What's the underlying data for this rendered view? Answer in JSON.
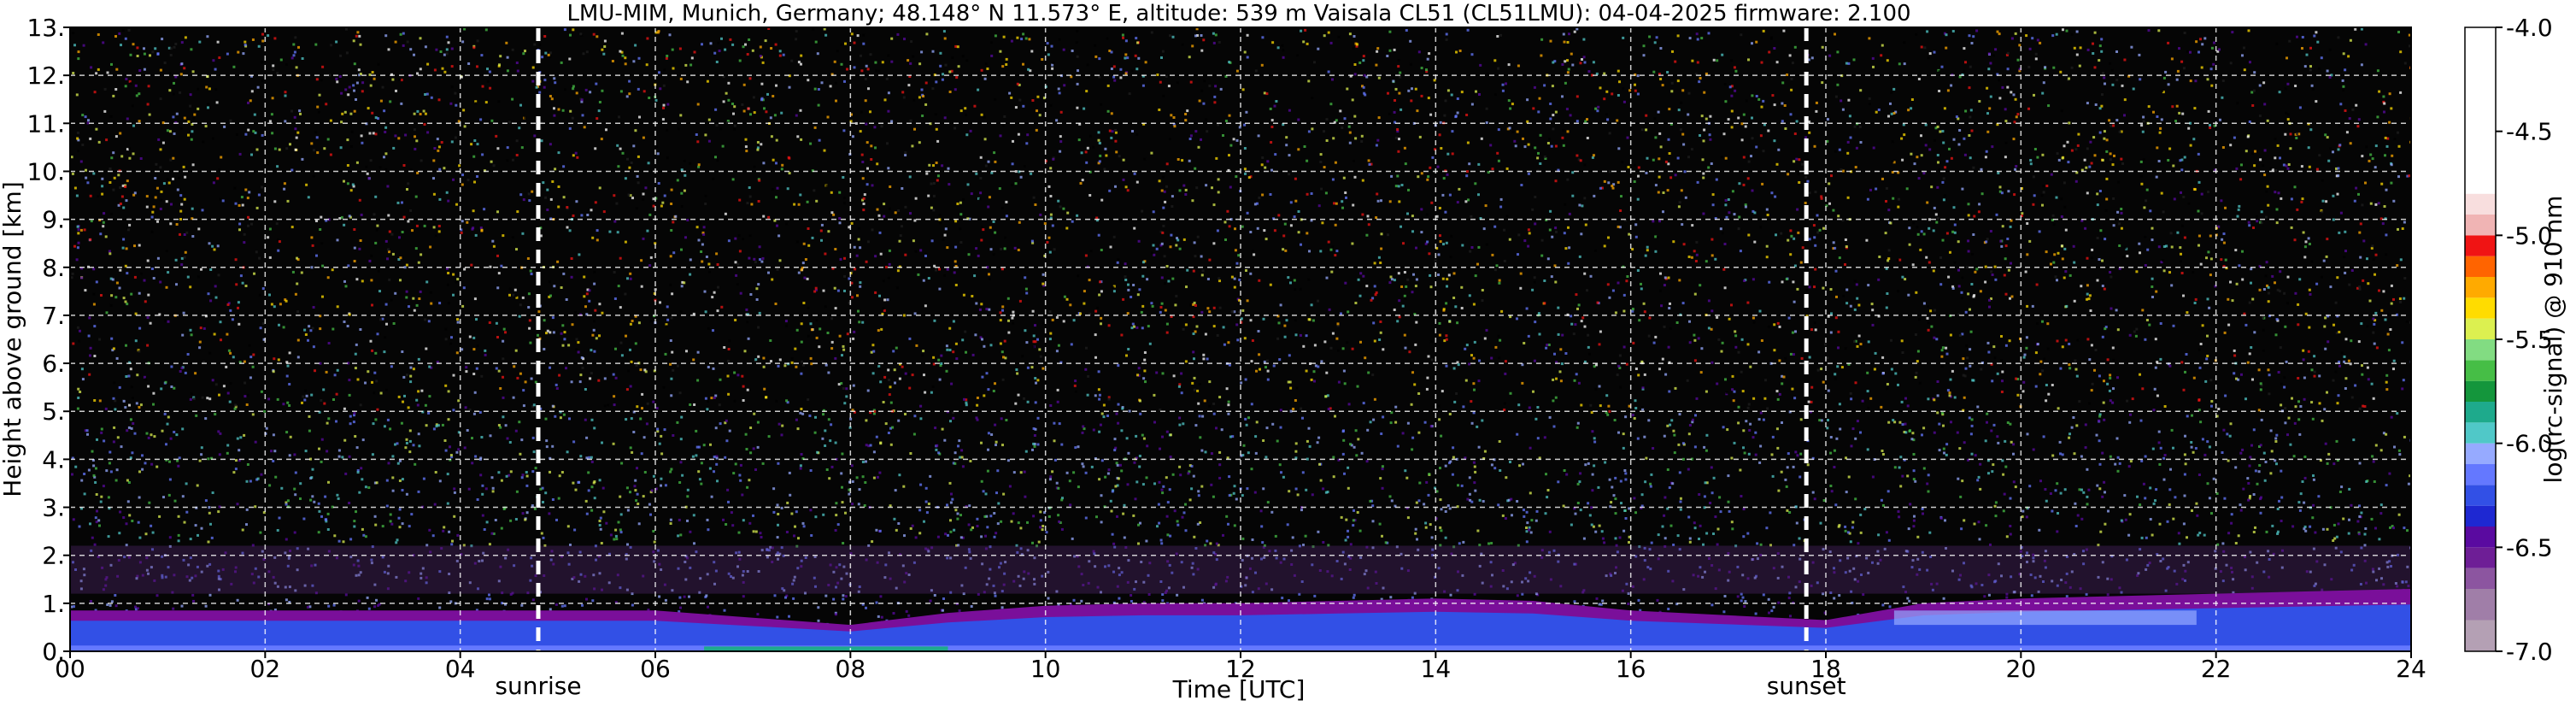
{
  "chart_data": {
    "type": "heatmap",
    "title": "LMU-MIM, Munich, Germany; 48.148° N 11.573° E, altitude: 539 m    Vaisala CL51 (CL51LMU): 04-04-2025    firmware: 2.100",
    "xlabel": "Time [UTC]",
    "ylabel": "Height above ground [km]",
    "xlim": [
      0,
      24
    ],
    "ylim": [
      0,
      13
    ],
    "x_ticks": [
      0,
      2,
      4,
      6,
      8,
      10,
      12,
      14,
      16,
      18,
      20,
      22,
      24
    ],
    "x_tick_labels": [
      "00",
      "02",
      "04",
      "06",
      "08",
      "10",
      "12",
      "14",
      "16",
      "18",
      "20",
      "22",
      "24"
    ],
    "y_ticks": [
      0,
      1,
      2,
      3,
      4,
      5,
      6,
      7,
      8,
      9,
      10,
      11,
      12,
      13
    ],
    "y_tick_labels": [
      "0.",
      "1.",
      "2.",
      "3.",
      "4.",
      "5.",
      "6.",
      "7.",
      "8.",
      "9.",
      "10.",
      "11.",
      "12.",
      "13."
    ],
    "grid": true,
    "events": [
      {
        "label": "sunrise",
        "time": 4.8
      },
      {
        "label": "sunset",
        "time": 17.8
      }
    ],
    "colorbar": {
      "label": "log(rc-signal) @ 910 nm",
      "range": [
        -7.0,
        -4.0
      ],
      "ticks": [
        -7.0,
        -6.5,
        -6.0,
        -5.5,
        -5.0,
        -4.5,
        -4.0
      ],
      "tick_labels": [
        "-7.0",
        "-6.5",
        "-6.0",
        "-5.5",
        "-5.0",
        "-4.5",
        "-4.0"
      ],
      "levels": [
        {
          "from": -7.0,
          "color": "#b4a0b4"
        },
        {
          "from": -6.85,
          "color": "#a07ea8"
        },
        {
          "from": -6.7,
          "color": "#8c55a0"
        },
        {
          "from": -6.6,
          "color": "#6e1e96"
        },
        {
          "from": -6.5,
          "color": "#5a0aa0"
        },
        {
          "from": -6.4,
          "color": "#1e28d2"
        },
        {
          "from": -6.3,
          "color": "#3250e6"
        },
        {
          "from": -6.2,
          "color": "#6478ff"
        },
        {
          "from": -6.1,
          "color": "#96aaff"
        },
        {
          "from": -6.0,
          "color": "#50c8c8"
        },
        {
          "from": -5.9,
          "color": "#1eaa8c"
        },
        {
          "from": -5.8,
          "color": "#14963c"
        },
        {
          "from": -5.7,
          "color": "#46be46"
        },
        {
          "from": -5.6,
          "color": "#82dc82"
        },
        {
          "from": -5.5,
          "color": "#dcf050"
        },
        {
          "from": -5.4,
          "color": "#ffdc00"
        },
        {
          "from": -5.3,
          "color": "#ffaa00"
        },
        {
          "from": -5.2,
          "color": "#ff6400"
        },
        {
          "from": -5.1,
          "color": "#f01414"
        },
        {
          "from": -5.0,
          "color": "#f0b4b4"
        },
        {
          "from": -4.9,
          "color": "#f8dede"
        },
        {
          "from": -4.8,
          "color": "#ffffff"
        }
      ]
    },
    "boundary_layer_top_km": [
      [
        0,
        0.85
      ],
      [
        2,
        0.85
      ],
      [
        4,
        0.85
      ],
      [
        6,
        0.85
      ],
      [
        7,
        0.7
      ],
      [
        8,
        0.55
      ],
      [
        9,
        0.8
      ],
      [
        10,
        0.95
      ],
      [
        11,
        1.0
      ],
      [
        12,
        1.0
      ],
      [
        13,
        1.05
      ],
      [
        14,
        1.1
      ],
      [
        15,
        1.05
      ],
      [
        16,
        0.85
      ],
      [
        17,
        0.75
      ],
      [
        18,
        0.65
      ],
      [
        19,
        1.0
      ],
      [
        20,
        1.1
      ],
      [
        22,
        1.2
      ],
      [
        24,
        1.3
      ]
    ],
    "background_noise_colors": [
      "#000000",
      "#1e1e1e",
      "#5a0aa0",
      "#6478ff",
      "#96aaff",
      "#50c8c8",
      "#46be46",
      "#dcf050",
      "#ffdc00",
      "#ffaa00",
      "#f01414",
      "#ffffff"
    ]
  }
}
